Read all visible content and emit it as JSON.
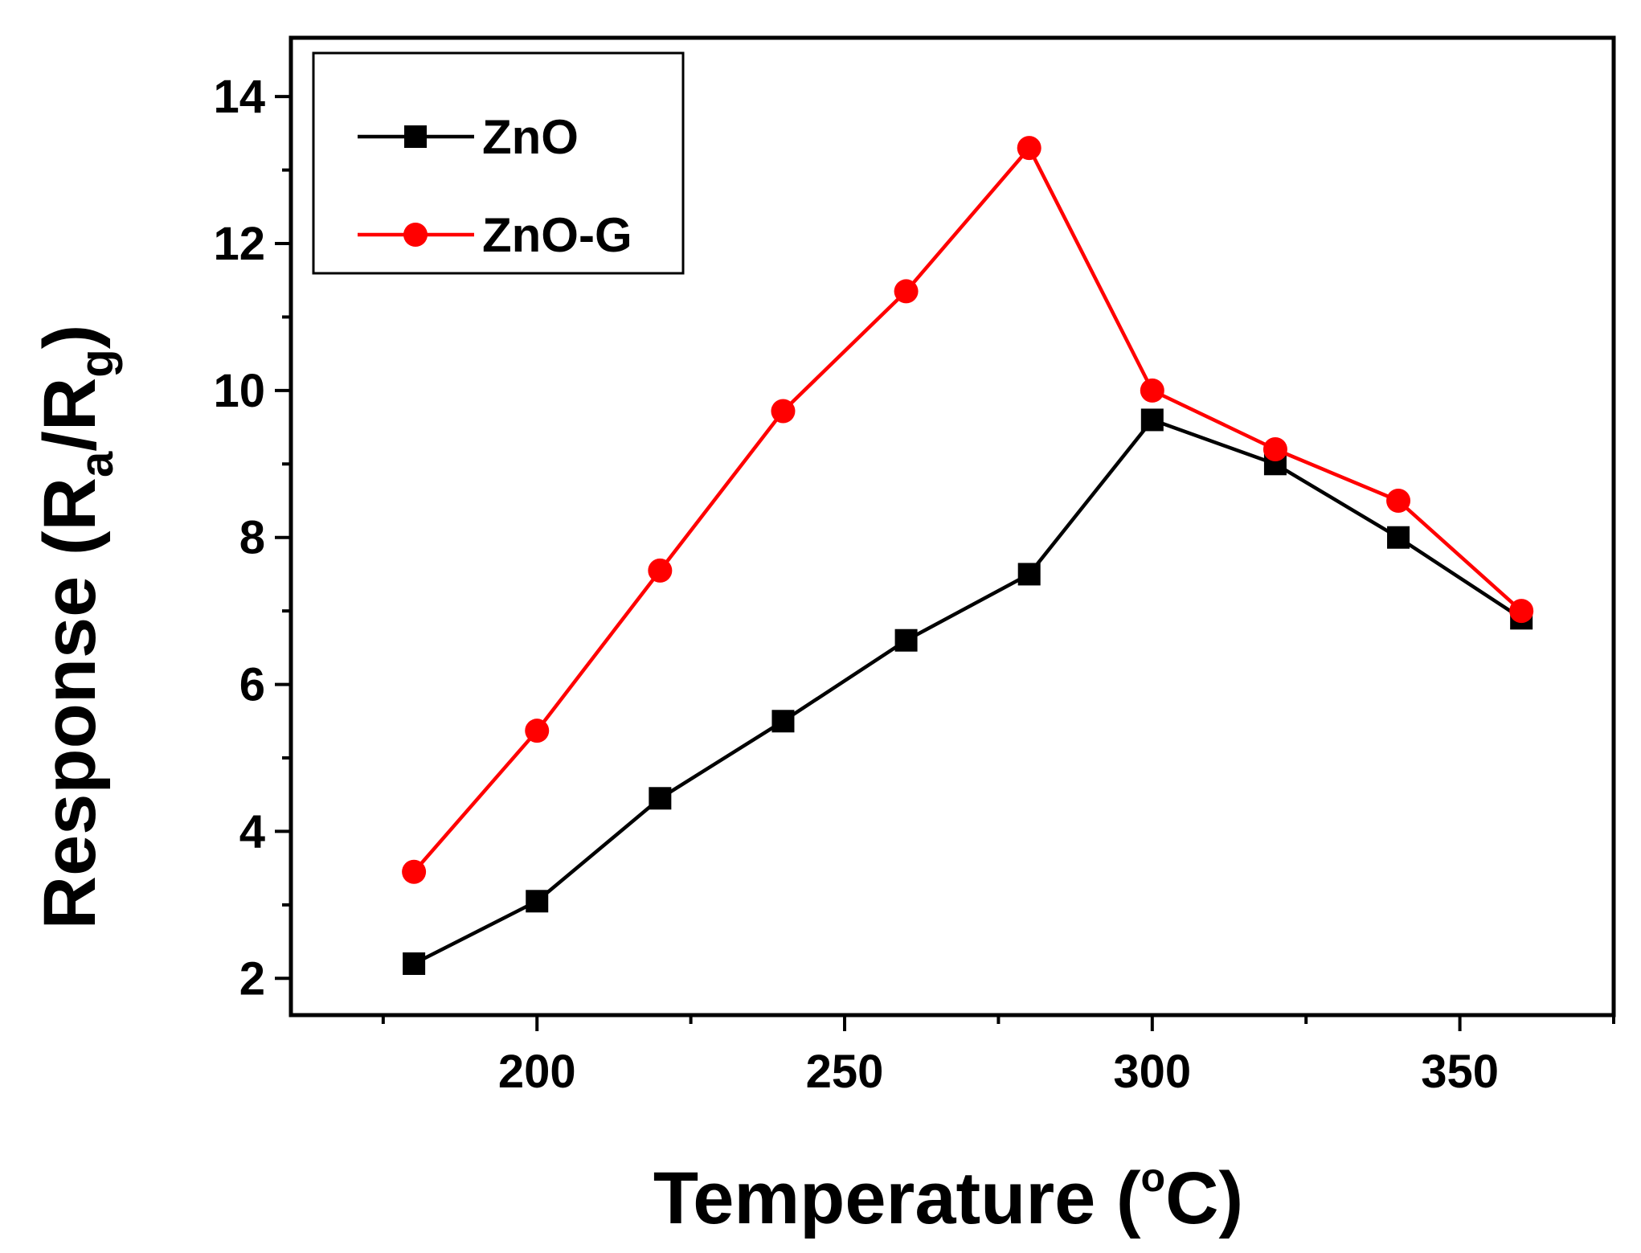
{
  "chart_data": {
    "type": "line",
    "xlabel": "Temperature (°C)",
    "xlabel_main": "Temperature (",
    "xlabel_degree": "o",
    "xlabel_unit": "C)",
    "ylabel": "Response (Ra/Rg)",
    "ylabel_main": "Response (R",
    "ylabel_sub_a": "a",
    "ylabel_slash": "/R",
    "ylabel_sub_g": "g",
    "ylabel_close": ")",
    "xlim": [
      160,
      375
    ],
    "ylim": [
      1.5,
      14.8
    ],
    "x_ticks": [
      200,
      250,
      300,
      350
    ],
    "x_minor_ticks": [
      175,
      225,
      275,
      325,
      375
    ],
    "y_ticks": [
      2,
      4,
      6,
      8,
      10,
      12,
      14
    ],
    "y_minor_ticks": [
      3,
      5,
      7,
      9,
      11,
      13
    ],
    "x": [
      180,
      200,
      220,
      240,
      260,
      280,
      300,
      320,
      340,
      360
    ],
    "series": [
      {
        "name": "ZnO",
        "color": "#000000",
        "marker": "square",
        "values": [
          2.2,
          3.05,
          4.45,
          5.5,
          6.6,
          7.5,
          9.6,
          9.0,
          8.0,
          6.9
        ]
      },
      {
        "name": "ZnO-G",
        "color": "#ff0000",
        "marker": "circle",
        "values": [
          3.45,
          5.37,
          7.55,
          9.72,
          11.35,
          13.3,
          10.0,
          9.2,
          8.5,
          7.0
        ]
      }
    ],
    "legend_position": "top-left",
    "grid": false
  }
}
